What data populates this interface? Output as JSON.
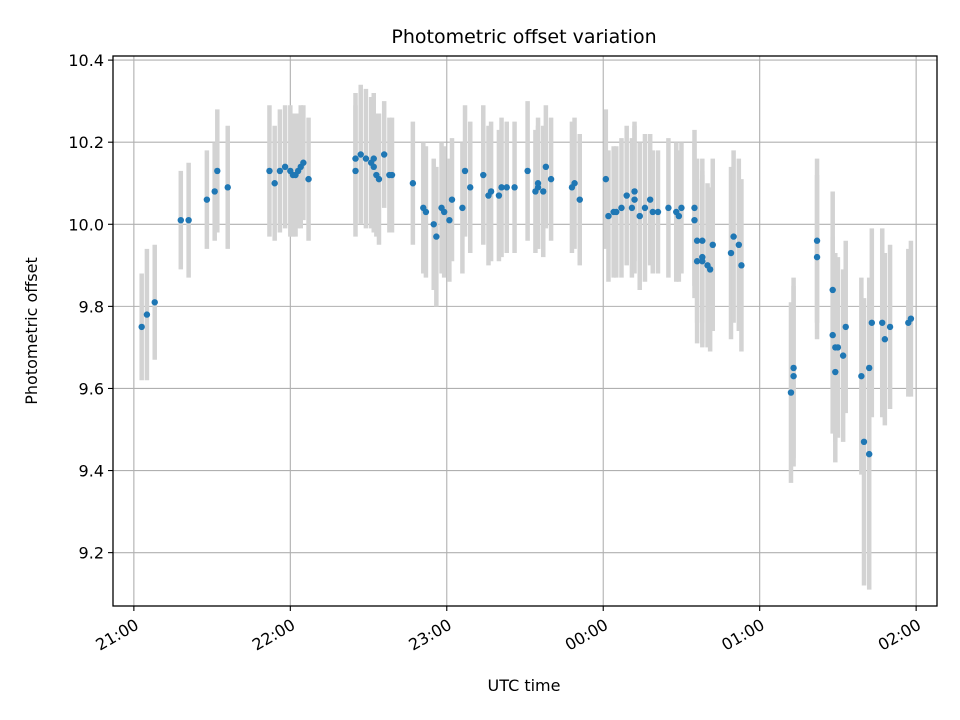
{
  "chart_data": {
    "type": "scatter",
    "title": "Photometric offset variation",
    "xlabel": "UTC time",
    "ylabel": "Photometric offset",
    "x_unit": "UTC",
    "x_start_label": "21:00",
    "xlim": [
      "20:52",
      "02:08"
    ],
    "ylim": [
      9.07,
      10.41
    ],
    "xticks": [
      "21:00",
      "22:00",
      "23:00",
      "00:00",
      "01:00",
      "02:00"
    ],
    "yticks": [
      9.2,
      9.4,
      9.6,
      9.8,
      10.0,
      10.2,
      10.4
    ],
    "ytick_labels": [
      "9.2",
      "9.4",
      "9.6",
      "9.8",
      "10.0",
      "10.2",
      "10.4"
    ],
    "grid": true,
    "marker_color": "#1f77b4",
    "errorbar_color": "#d3d3d3",
    "series": [
      {
        "x": [
          "21:03",
          "21:05",
          "21:08",
          "21:18",
          "21:21",
          "21:28",
          "21:31",
          "21:32",
          "21:36",
          "21:52",
          "21:54",
          "21:56",
          "21:58",
          "22:00",
          "22:01",
          "22:02",
          "22:03",
          "22:04",
          "22:05",
          "22:07",
          "22:25",
          "22:25",
          "22:27",
          "22:29",
          "22:31",
          "22:32",
          "22:32",
          "22:33",
          "22:34",
          "22:36",
          "22:38",
          "22:39",
          "22:47",
          "22:51",
          "22:52",
          "22:55",
          "22:56",
          "22:58",
          "22:59",
          "23:01",
          "23:02",
          "23:06",
          "23:07",
          "23:09",
          "23:14",
          "23:16",
          "23:17",
          "23:20",
          "23:21",
          "23:23",
          "23:26",
          "23:31",
          "23:34",
          "23:35",
          "23:35",
          "23:37",
          "23:38",
          "23:40",
          "23:48",
          "23:49",
          "23:51",
          "00:01",
          "00:02",
          "00:04",
          "00:05",
          "00:07",
          "00:09",
          "00:11",
          "00:12",
          "00:12",
          "00:14",
          "00:16",
          "00:18",
          "00:19",
          "00:21",
          "00:25",
          "00:28",
          "00:29",
          "00:30",
          "00:35",
          "00:35",
          "00:36",
          "00:36",
          "00:38",
          "00:38",
          "00:38",
          "00:40",
          "00:41",
          "00:42",
          "00:49",
          "00:50",
          "00:52",
          "00:53",
          "01:12",
          "01:13",
          "01:13",
          "01:22",
          "01:22",
          "01:28",
          "01:28",
          "01:29",
          "01:29",
          "01:30",
          "01:32",
          "01:33",
          "01:39",
          "01:40",
          "01:42",
          "01:42",
          "01:43",
          "01:47",
          "01:48",
          "01:50",
          "01:57",
          "01:58"
        ],
        "y": [
          9.75,
          9.78,
          9.81,
          10.01,
          10.01,
          10.06,
          10.08,
          10.13,
          10.09,
          10.13,
          10.1,
          10.13,
          10.14,
          10.13,
          10.12,
          10.12,
          10.13,
          10.14,
          10.15,
          10.11,
          10.16,
          10.13,
          10.17,
          10.16,
          10.15,
          10.16,
          10.14,
          10.12,
          10.11,
          10.17,
          10.12,
          10.12,
          10.1,
          10.04,
          10.03,
          10.0,
          9.97,
          10.04,
          10.03,
          10.01,
          10.06,
          10.04,
          10.13,
          10.09,
          10.12,
          10.07,
          10.08,
          10.07,
          10.09,
          10.09,
          10.09,
          10.13,
          10.08,
          10.09,
          10.1,
          10.08,
          10.14,
          10.11,
          10.09,
          10.1,
          10.06,
          10.11,
          10.02,
          10.03,
          10.03,
          10.04,
          10.07,
          10.04,
          10.08,
          10.06,
          10.02,
          10.04,
          10.06,
          10.03,
          10.03,
          10.04,
          10.03,
          10.02,
          10.04,
          10.04,
          10.01,
          9.96,
          9.91,
          9.92,
          9.91,
          9.96,
          9.9,
          9.89,
          9.95,
          9.93,
          9.97,
          9.95,
          9.9,
          9.59,
          9.63,
          9.65,
          9.96,
          9.92,
          9.84,
          9.73,
          9.7,
          9.64,
          9.7,
          9.68,
          9.75,
          9.63,
          9.47,
          9.44,
          9.65,
          9.76,
          9.76,
          9.72,
          9.75,
          9.76,
          9.77
        ],
        "yerr": [
          0.13,
          0.16,
          0.14,
          0.12,
          0.14,
          0.12,
          0.12,
          0.15,
          0.15,
          0.16,
          0.14,
          0.15,
          0.15,
          0.16,
          0.15,
          0.15,
          0.14,
          0.15,
          0.14,
          0.15,
          0.16,
          0.16,
          0.17,
          0.17,
          0.16,
          0.16,
          0.16,
          0.15,
          0.16,
          0.13,
          0.14,
          0.14,
          0.15,
          0.16,
          0.16,
          0.16,
          0.17,
          0.16,
          0.16,
          0.15,
          0.15,
          0.16,
          0.16,
          0.16,
          0.17,
          0.17,
          0.17,
          0.16,
          0.17,
          0.16,
          0.16,
          0.17,
          0.15,
          0.15,
          0.16,
          0.16,
          0.15,
          0.15,
          0.16,
          0.16,
          0.16,
          0.17,
          0.16,
          0.16,
          0.16,
          0.17,
          0.17,
          0.17,
          0.17,
          0.18,
          0.18,
          0.18,
          0.16,
          0.15,
          0.15,
          0.17,
          0.17,
          0.16,
          0.16,
          0.19,
          0.19,
          0.2,
          0.2,
          0.21,
          0.21,
          0.2,
          0.2,
          0.2,
          0.21,
          0.21,
          0.21,
          0.21,
          0.21,
          0.22,
          0.22,
          0.22,
          0.2,
          0.2,
          0.24,
          0.24,
          0.23,
          0.22,
          0.22,
          0.21,
          0.21,
          0.24,
          0.35,
          0.33,
          0.22,
          0.23,
          0.23,
          0.21,
          0.2,
          0.18,
          0.19
        ]
      }
    ]
  }
}
